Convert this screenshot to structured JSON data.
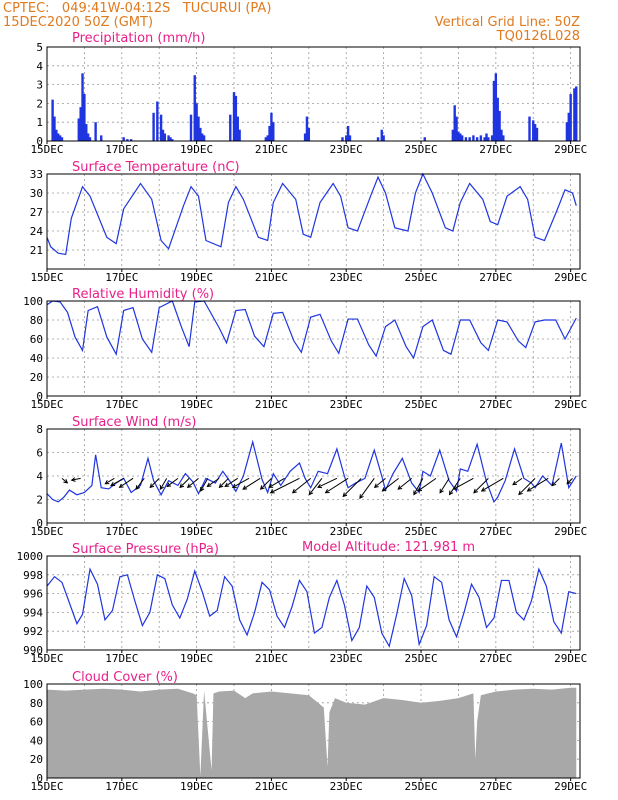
{
  "header": {
    "line1": "CPTEC:   049:41W-04:12S   TUCURUI (PA)",
    "line2": "15DEC2020 50Z (GMT)",
    "right1": "Vertical Grid Line: 50Z",
    "right2": "TQ0126L028"
  },
  "x_ticks": [
    "15DEC",
    "17DEC",
    "19DEC",
    "21DEC",
    "23DEC",
    "25DEC",
    "27DEC",
    "29DEC"
  ],
  "model_altitude": "Model Altitude: 121.981 m",
  "colors": {
    "header": "#e07a1f",
    "title": "#e8208a",
    "line": "#1f35e0",
    "bar": "#1f35e0",
    "cloud": "#a8a8a8"
  },
  "chart_data": [
    {
      "type": "bar",
      "title": "Precipitation (mm/h)",
      "ylim": [
        0,
        5
      ],
      "yticks": [
        "0",
        "1",
        "2",
        "3",
        "4",
        "5"
      ],
      "x_days": [
        0.15,
        0.2,
        0.25,
        0.3,
        0.35,
        0.4,
        0.85,
        0.9,
        0.95,
        1.0,
        1.05,
        1.1,
        1.15,
        1.3,
        1.45,
        2.05,
        2.15,
        2.25,
        2.85,
        2.95,
        3.05,
        3.1,
        3.15,
        3.25,
        3.3,
        3.35,
        3.85,
        3.95,
        4.0,
        4.05,
        4.1,
        4.15,
        4.2,
        4.9,
        5.0,
        5.05,
        5.1,
        5.15,
        5.85,
        5.9,
        5.95,
        6.0,
        6.05,
        6.9,
        6.95,
        7.0,
        7.9,
        8.0,
        8.05,
        8.1,
        8.85,
        8.95,
        9.0,
        10.1,
        10.85,
        10.9,
        10.95,
        11.0,
        11.05,
        11.1,
        11.2,
        11.3,
        11.4,
        11.5,
        11.6,
        11.7,
        11.75,
        11.8,
        11.9,
        11.95,
        12.0,
        12.05,
        12.1,
        12.15,
        12.2,
        12.9,
        13.0,
        13.05,
        13.1,
        13.9,
        13.95,
        14.0,
        14.1,
        14.15
      ],
      "values": [
        2.2,
        1.3,
        0.6,
        0.4,
        0.3,
        0.2,
        1.2,
        1.8,
        3.6,
        2.5,
        0.9,
        0.4,
        0.2,
        1.0,
        0.3,
        0.2,
        0.1,
        0.1,
        1.5,
        2.1,
        1.4,
        0.6,
        0.4,
        0.3,
        0.2,
        0.1,
        1.4,
        3.5,
        2.0,
        1.3,
        0.7,
        0.4,
        0.3,
        1.4,
        2.6,
        2.4,
        1.3,
        0.6,
        0.2,
        0.3,
        0.8,
        1.5,
        1.0,
        0.4,
        1.3,
        0.7,
        0.2,
        0.3,
        0.8,
        0.3,
        0.2,
        0.6,
        0.3,
        0.2,
        0.6,
        1.9,
        1.3,
        0.5,
        0.4,
        0.3,
        0.2,
        0.2,
        0.3,
        0.2,
        0.3,
        0.2,
        0.4,
        0.2,
        0.3,
        3.2,
        3.6,
        2.3,
        1.6,
        0.6,
        0.3,
        1.3,
        1.1,
        0.9,
        0.7,
        1.0,
        1.5,
        2.5,
        2.8,
        2.9
      ]
    },
    {
      "type": "line",
      "title": "Surface Temperature (nC)",
      "ylim": [
        18,
        33
      ],
      "yticks": [
        "21",
        "24",
        "27",
        "30",
        "33"
      ],
      "x_days": [
        0,
        0.1,
        0.3,
        0.5,
        0.65,
        0.95,
        1.15,
        1.6,
        1.85,
        2.05,
        2.5,
        2.8,
        3.05,
        3.25,
        3.65,
        3.85,
        4.05,
        4.25,
        4.65,
        4.85,
        5.05,
        5.25,
        5.65,
        5.9,
        6.05,
        6.3,
        6.65,
        6.85,
        7.05,
        7.3,
        7.65,
        7.85,
        8.05,
        8.3,
        8.65,
        8.85,
        9.05,
        9.3,
        9.65,
        9.85,
        10.05,
        10.3,
        10.65,
        10.85,
        11.05,
        11.3,
        11.65,
        11.85,
        12.05,
        12.3,
        12.65,
        12.85,
        13.05,
        13.3,
        13.65,
        13.85,
        14.05,
        14.15
      ],
      "values": [
        23,
        21.5,
        20.5,
        20.3,
        26,
        31,
        29.5,
        23,
        22,
        27.5,
        31.5,
        29,
        22.5,
        21.2,
        28,
        31,
        29.5,
        22.5,
        21.5,
        28.5,
        31,
        29,
        23,
        22.5,
        28.5,
        31.5,
        29,
        23.5,
        23,
        28.5,
        31.5,
        29.5,
        24.5,
        24,
        29.5,
        32.5,
        30,
        24.5,
        24,
        30,
        33,
        30,
        24.5,
        24,
        28.5,
        31.5,
        29,
        25.5,
        25,
        29.5,
        31,
        29,
        23,
        22.5,
        27.5,
        30.5,
        30,
        28
      ]
    },
    {
      "type": "line",
      "title": "Relative Humidity (%)",
      "ylim": [
        0,
        100
      ],
      "yticks": [
        "0",
        "20",
        "40",
        "60",
        "80",
        "100"
      ],
      "x_days": [
        0,
        0.15,
        0.35,
        0.55,
        0.75,
        0.95,
        1.1,
        1.35,
        1.6,
        1.85,
        2.05,
        2.3,
        2.55,
        2.8,
        3.0,
        3.35,
        3.6,
        3.8,
        3.95,
        4.2,
        4.6,
        4.8,
        5.05,
        5.3,
        5.55,
        5.8,
        6.05,
        6.3,
        6.6,
        6.8,
        7.05,
        7.3,
        7.6,
        7.8,
        8.05,
        8.3,
        8.6,
        8.8,
        9.05,
        9.3,
        9.6,
        9.8,
        10.05,
        10.3,
        10.6,
        10.8,
        11.05,
        11.3,
        11.6,
        11.8,
        12.05,
        12.3,
        12.6,
        12.8,
        13.05,
        13.3,
        13.6,
        13.85,
        14.15
      ],
      "values": [
        96,
        100,
        99,
        88,
        62,
        48,
        90,
        94,
        62,
        44,
        90,
        93,
        60,
        46,
        93,
        100,
        72,
        52,
        99,
        100,
        72,
        56,
        90,
        91,
        63,
        52,
        87,
        88,
        58,
        46,
        83,
        86,
        58,
        45,
        81,
        81,
        54,
        42,
        73,
        80,
        52,
        40,
        73,
        80,
        48,
        44,
        80,
        80,
        56,
        48,
        80,
        78,
        58,
        51,
        78,
        80,
        80,
        60,
        82
      ]
    },
    {
      "type": "line",
      "title": "Surface Wind (m/s)",
      "ylim": [
        0,
        8
      ],
      "yticks": [
        "0",
        "2",
        "4",
        "6",
        "8"
      ],
      "x_days": [
        0,
        0.15,
        0.3,
        0.45,
        0.6,
        0.8,
        1.0,
        1.2,
        1.3,
        1.45,
        1.65,
        1.85,
        2.05,
        2.25,
        2.5,
        2.7,
        2.85,
        3.05,
        3.25,
        3.5,
        3.7,
        3.9,
        4.05,
        4.25,
        4.5,
        4.7,
        4.9,
        5.05,
        5.25,
        5.5,
        5.75,
        5.9,
        6.05,
        6.25,
        6.5,
        6.75,
        6.9,
        7.05,
        7.25,
        7.5,
        7.75,
        7.95,
        8.05,
        8.25,
        8.5,
        8.75,
        8.95,
        9.05,
        9.25,
        9.5,
        9.75,
        9.95,
        10.05,
        10.25,
        10.5,
        10.75,
        10.95,
        11.05,
        11.25,
        11.5,
        11.75,
        11.95,
        12.05,
        12.25,
        12.5,
        12.75,
        12.95,
        13.05,
        13.25,
        13.5,
        13.75,
        13.95,
        14.15
      ],
      "values": [
        2.5,
        2.0,
        1.8,
        2.2,
        2.8,
        2.4,
        2.6,
        3.2,
        5.8,
        3.0,
        2.9,
        3.4,
        3.8,
        2.6,
        3.2,
        5.5,
        3.6,
        2.4,
        3.6,
        3.2,
        4.2,
        3.5,
        2.5,
        3.8,
        3.4,
        4.4,
        3.5,
        2.7,
        4.0,
        6.9,
        3.7,
        2.6,
        4.2,
        3.2,
        4.4,
        5.1,
        3.8,
        3.0,
        4.4,
        4.2,
        6.3,
        4.0,
        3.0,
        3.4,
        3.8,
        6.2,
        4.0,
        2.8,
        4.2,
        5.5,
        3.4,
        2.6,
        4.4,
        4.0,
        6.2,
        3.6,
        2.7,
        4.6,
        4.4,
        6.7,
        3.5,
        1.8,
        2.2,
        3.6,
        6.3,
        3.8,
        3.4,
        3.0,
        4.0,
        3.2,
        6.8,
        3.0,
        4.0
      ],
      "arrow_days": [
        0.4,
        0.9,
        1.8,
        2.05,
        2.3,
        2.6,
        3.0,
        3.2,
        3.5,
        3.8,
        4.05,
        4.3,
        4.6,
        4.85,
        5.1,
        5.4,
        5.7,
        6.0,
        6.35,
        6.75,
        7.05,
        7.35,
        7.75,
        8.05,
        8.4,
        8.75,
        9.05,
        9.4,
        9.75,
        10.05,
        10.4,
        10.75,
        11.05,
        11.4,
        11.8,
        12.2,
        12.7,
        13.05,
        13.4,
        13.7,
        14.05
      ],
      "arrow_u": [
        0.6,
        -1.0,
        -1.0,
        -1.4,
        -1.5,
        -0.9,
        -1.0,
        -0.7,
        -1.2,
        -1.0,
        -1.2,
        -0.8,
        -1.3,
        -1.0,
        -1.4,
        -1.8,
        -1.9,
        -1.2,
        -1.7,
        -3.2,
        -2.0,
        -1.4,
        -2.1,
        -2.5,
        -2.0,
        -1.6,
        -1.2,
        -1.8,
        -1.5,
        -1.0,
        -2.0,
        -1.0,
        -1.2,
        -2.2,
        -1.6,
        -2.4,
        -1.0,
        -1.8,
        -2.3,
        -0.8,
        -0.6
      ],
      "arrow_v": [
        -0.5,
        -0.2,
        -0.6,
        -0.8,
        -1.0,
        -1.2,
        -1.0,
        -1.2,
        -0.9,
        -1.0,
        -1.0,
        -1.4,
        -0.9,
        -1.0,
        -0.9,
        -1.0,
        -1.2,
        -1.2,
        -1.0,
        -1.6,
        -1.6,
        -1.8,
        -1.0,
        -1.6,
        -2.0,
        -2.2,
        -1.0,
        -1.4,
        -1.2,
        -1.8,
        -1.4,
        -1.6,
        -1.8,
        -1.2,
        -1.6,
        -1.4,
        -0.7,
        -1.8,
        -1.4,
        -0.8,
        -0.6
      ]
    },
    {
      "type": "line",
      "title": "Surface Pressure (hPa)",
      "ylim": [
        990,
        1000
      ],
      "yticks": [
        "990",
        "992",
        "994",
        "996",
        "998",
        "1000"
      ],
      "x_days": [
        0,
        0.2,
        0.4,
        0.6,
        0.8,
        0.95,
        1.15,
        1.35,
        1.55,
        1.75,
        1.95,
        2.15,
        2.35,
        2.55,
        2.75,
        2.95,
        3.15,
        3.35,
        3.55,
        3.75,
        3.95,
        4.15,
        4.35,
        4.55,
        4.75,
        4.95,
        5.15,
        5.35,
        5.55,
        5.75,
        5.95,
        6.15,
        6.35,
        6.55,
        6.75,
        6.95,
        7.15,
        7.35,
        7.55,
        7.75,
        7.95,
        8.15,
        8.35,
        8.55,
        8.75,
        8.95,
        9.15,
        9.35,
        9.55,
        9.75,
        9.95,
        10.15,
        10.35,
        10.55,
        10.75,
        10.95,
        11.15,
        11.35,
        11.55,
        11.75,
        11.95,
        12.15,
        12.35,
        12.55,
        12.75,
        12.95,
        13.15,
        13.35,
        13.55,
        13.75,
        13.95,
        14.15
      ],
      "values": [
        996.8,
        997.8,
        997.2,
        995.0,
        992.8,
        993.8,
        998.6,
        997.0,
        993.2,
        994.2,
        997.8,
        998.0,
        995.2,
        992.6,
        994.0,
        998.0,
        997.6,
        994.8,
        993.4,
        995.4,
        998.4,
        996.2,
        993.6,
        994.2,
        997.8,
        996.8,
        993.2,
        991.6,
        994.0,
        997.2,
        996.4,
        993.6,
        992.4,
        994.6,
        997.4,
        996.2,
        991.8,
        992.4,
        995.6,
        997.4,
        994.8,
        991.0,
        992.4,
        996.8,
        995.6,
        991.8,
        990.4,
        993.8,
        997.6,
        995.8,
        990.6,
        992.6,
        997.8,
        997.2,
        993.2,
        991.4,
        994.0,
        997.0,
        995.6,
        992.4,
        993.4,
        997.4,
        997.4,
        994.0,
        993.2,
        995.2,
        998.6,
        996.8,
        993.0,
        991.8,
        996.2,
        996.0
      ]
    },
    {
      "type": "area",
      "title": "Cloud Cover (%)",
      "ylim": [
        0,
        100
      ],
      "yticks": [
        "0",
        "20",
        "40",
        "60",
        "80",
        "100"
      ],
      "x_days": [
        0,
        0.5,
        1,
        1.5,
        2,
        2.5,
        3,
        3.5,
        3.9,
        4.0,
        4.1,
        4.2,
        4.4,
        4.45,
        4.6,
        5.0,
        5.3,
        5.5,
        6.0,
        6.5,
        7.0,
        7.4,
        7.5,
        7.55,
        7.7,
        8.0,
        8.5,
        9.0,
        9.5,
        10.0,
        10.5,
        11.0,
        11.4,
        11.45,
        11.5,
        11.6,
        12.0,
        12.5,
        13.0,
        13.5,
        14.0,
        14.15
      ],
      "values": [
        94,
        93,
        94,
        95,
        94,
        92,
        94,
        95,
        90,
        88,
        2,
        93,
        8,
        90,
        92,
        93,
        85,
        90,
        92,
        90,
        88,
        75,
        12,
        70,
        85,
        80,
        78,
        85,
        83,
        80,
        82,
        85,
        90,
        20,
        60,
        88,
        92,
        94,
        95,
        94,
        96,
        96
      ]
    }
  ]
}
